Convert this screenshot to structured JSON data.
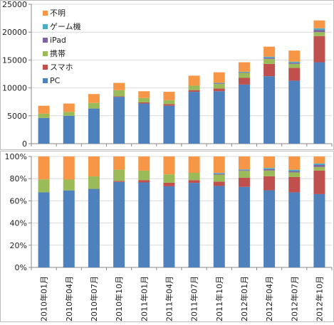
{
  "chart_data": [
    {
      "type": "bar",
      "stacked": true,
      "categories": [
        "2010年01月",
        "2010年04月",
        "2010年07月",
        "2010年10月",
        "2011年01月",
        "2011年04月",
        "2011年07月",
        "2011年10月",
        "2012年01月",
        "2012年04月",
        "2012年07月",
        "2012年10月"
      ],
      "series": [
        {
          "name": "PC",
          "color": "#4F81BD",
          "values": [
            4600,
            5000,
            6300,
            8400,
            7200,
            6800,
            9300,
            9400,
            10600,
            12100,
            11300,
            14600
          ]
        },
        {
          "name": "スマホ",
          "color": "#C0504D",
          "values": [
            0,
            0,
            0,
            100,
            200,
            300,
            300,
            500,
            1200,
            2200,
            2300,
            4700
          ]
        },
        {
          "name": "携帯",
          "color": "#9BBB59",
          "values": [
            800,
            700,
            1000,
            1100,
            800,
            700,
            800,
            800,
            900,
            900,
            700,
            700
          ]
        },
        {
          "name": "iPad",
          "color": "#8064A2",
          "values": [
            0,
            0,
            0,
            0,
            0,
            0,
            0,
            100,
            100,
            200,
            200,
            400
          ]
        },
        {
          "name": "ゲーム機",
          "color": "#4BACC6",
          "values": [
            0,
            0,
            0,
            0,
            0,
            0,
            0,
            100,
            100,
            200,
            200,
            300
          ]
        },
        {
          "name": "不明",
          "color": "#F79646",
          "values": [
            1400,
            1500,
            1600,
            1300,
            1200,
            1500,
            1800,
            1900,
            1700,
            1800,
            2000,
            1400
          ]
        }
      ],
      "ylim": [
        0,
        25000
      ],
      "yticks": [
        "0",
        "5000",
        "10000",
        "15000",
        "20000",
        "25000"
      ],
      "grid": true,
      "legend": "top-left"
    },
    {
      "type": "bar",
      "stacked": true,
      "percent": true,
      "categories": [
        "2010年01月",
        "2010年04月",
        "2010年07月",
        "2010年10月",
        "2011年01月",
        "2011年04月",
        "2011年07月",
        "2011年10月",
        "2012年01月",
        "2012年04月",
        "2012年07月",
        "2012年10月"
      ],
      "ylim": [
        0,
        100
      ],
      "yticks": [
        "0%",
        "20%",
        "40%",
        "60%",
        "80%",
        "100%"
      ],
      "grid": true
    }
  ]
}
